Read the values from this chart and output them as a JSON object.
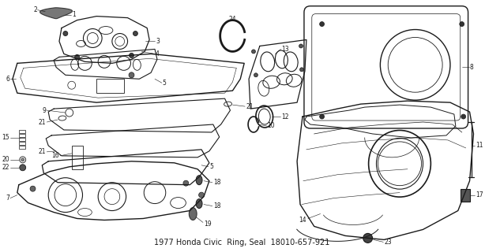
{
  "title": "1977 Honda Civic  Ring, Seal  18010-657-921",
  "bg_color": "#ffffff",
  "fig_width": 6.14,
  "fig_height": 3.2,
  "dpi": 100,
  "line_color": "#1a1a1a",
  "label_fontsize": 5.5,
  "title_fontsize": 7.0,
  "xlim": [
    0,
    614
  ],
  "ylim": [
    0,
    320
  ]
}
